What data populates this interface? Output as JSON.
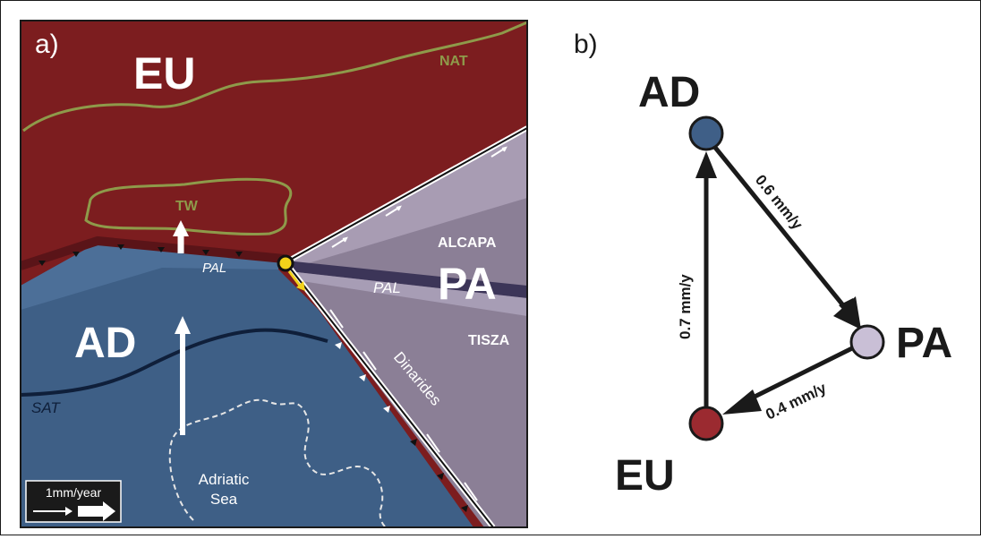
{
  "panel_a": {
    "label": "a)",
    "plates": {
      "eu": "EU",
      "ad": "AD",
      "pa": "PA"
    },
    "labels": {
      "nat": "NAT",
      "tw": "TW",
      "pal_west": "PAL",
      "pal_east": "PAL",
      "alcapa": "ALCAPA",
      "tisza": "TISZA",
      "dinarides": "Dinarides",
      "sat": "SAT",
      "adriatic_line1": "Adriatic",
      "adriatic_line2": "Sea"
    },
    "scale": {
      "label": "1mm/year"
    },
    "colors": {
      "eu": "#7c1d1f",
      "ad": "#3e5f86",
      "pa": "#8b7f96",
      "nat_line": "#8e9a4a",
      "sat_line": "#0f1f3a",
      "pivot": "#f2d21a",
      "text_light": "#ffffff"
    }
  },
  "panel_b": {
    "label": "b)",
    "nodes": [
      {
        "id": "ad",
        "label": "AD",
        "color": "#3f5f87"
      },
      {
        "id": "pa",
        "label": "PA",
        "color": "#c9bfd6"
      },
      {
        "id": "eu",
        "label": "EU",
        "color": "#9b2a30"
      }
    ],
    "edges": [
      {
        "from": "ad",
        "to": "pa",
        "label": "0.6 mm/y"
      },
      {
        "from": "pa",
        "to": "eu",
        "label": "0.4 mm/y"
      },
      {
        "from": "eu",
        "to": "ad",
        "label": "0.7 mm/y"
      }
    ]
  }
}
